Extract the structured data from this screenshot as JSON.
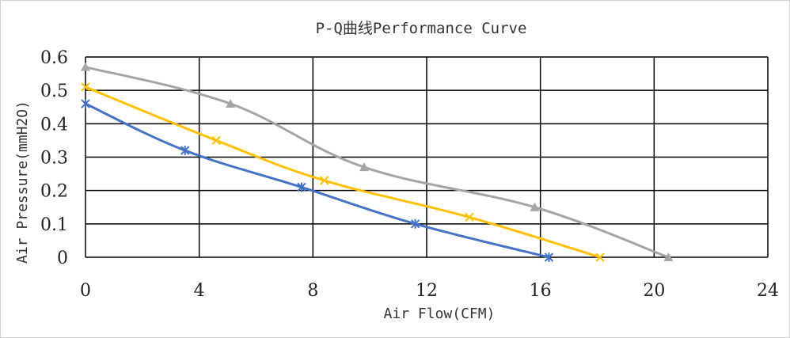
{
  "chart_data": {
    "type": "line",
    "title": "P-Q曲线Performance Curve",
    "xlabel": "Air Flow(CFM)",
    "ylabel": "Air Pressure(mmH2O)",
    "xlim": [
      0,
      24
    ],
    "ylim": [
      0,
      0.6
    ],
    "x_ticks": [
      "0",
      "4",
      "8",
      "12",
      "16",
      "20",
      "24"
    ],
    "y_ticks": [
      "0",
      "0.1",
      "0.2",
      "0.3",
      "0.4",
      "0.5",
      "0.6"
    ],
    "grid": true,
    "series": [
      {
        "color": "#4472c4",
        "marker": "star",
        "points": [
          [
            0,
            0.46
          ],
          [
            3.5,
            0.32
          ],
          [
            7.6,
            0.21
          ],
          [
            11.6,
            0.1
          ],
          [
            16.3,
            0.0
          ]
        ]
      },
      {
        "color": "#ffc000",
        "marker": "x",
        "points": [
          [
            0,
            0.51
          ],
          [
            4.6,
            0.35
          ],
          [
            8.4,
            0.23
          ],
          [
            13.5,
            0.12
          ],
          [
            18.1,
            0.0
          ]
        ]
      },
      {
        "color": "#a5a5a5",
        "marker": "triangle",
        "points": [
          [
            0,
            0.57
          ],
          [
            5.1,
            0.46
          ],
          [
            9.8,
            0.27
          ],
          [
            15.8,
            0.15
          ],
          [
            20.5,
            0.0
          ]
        ]
      }
    ]
  }
}
